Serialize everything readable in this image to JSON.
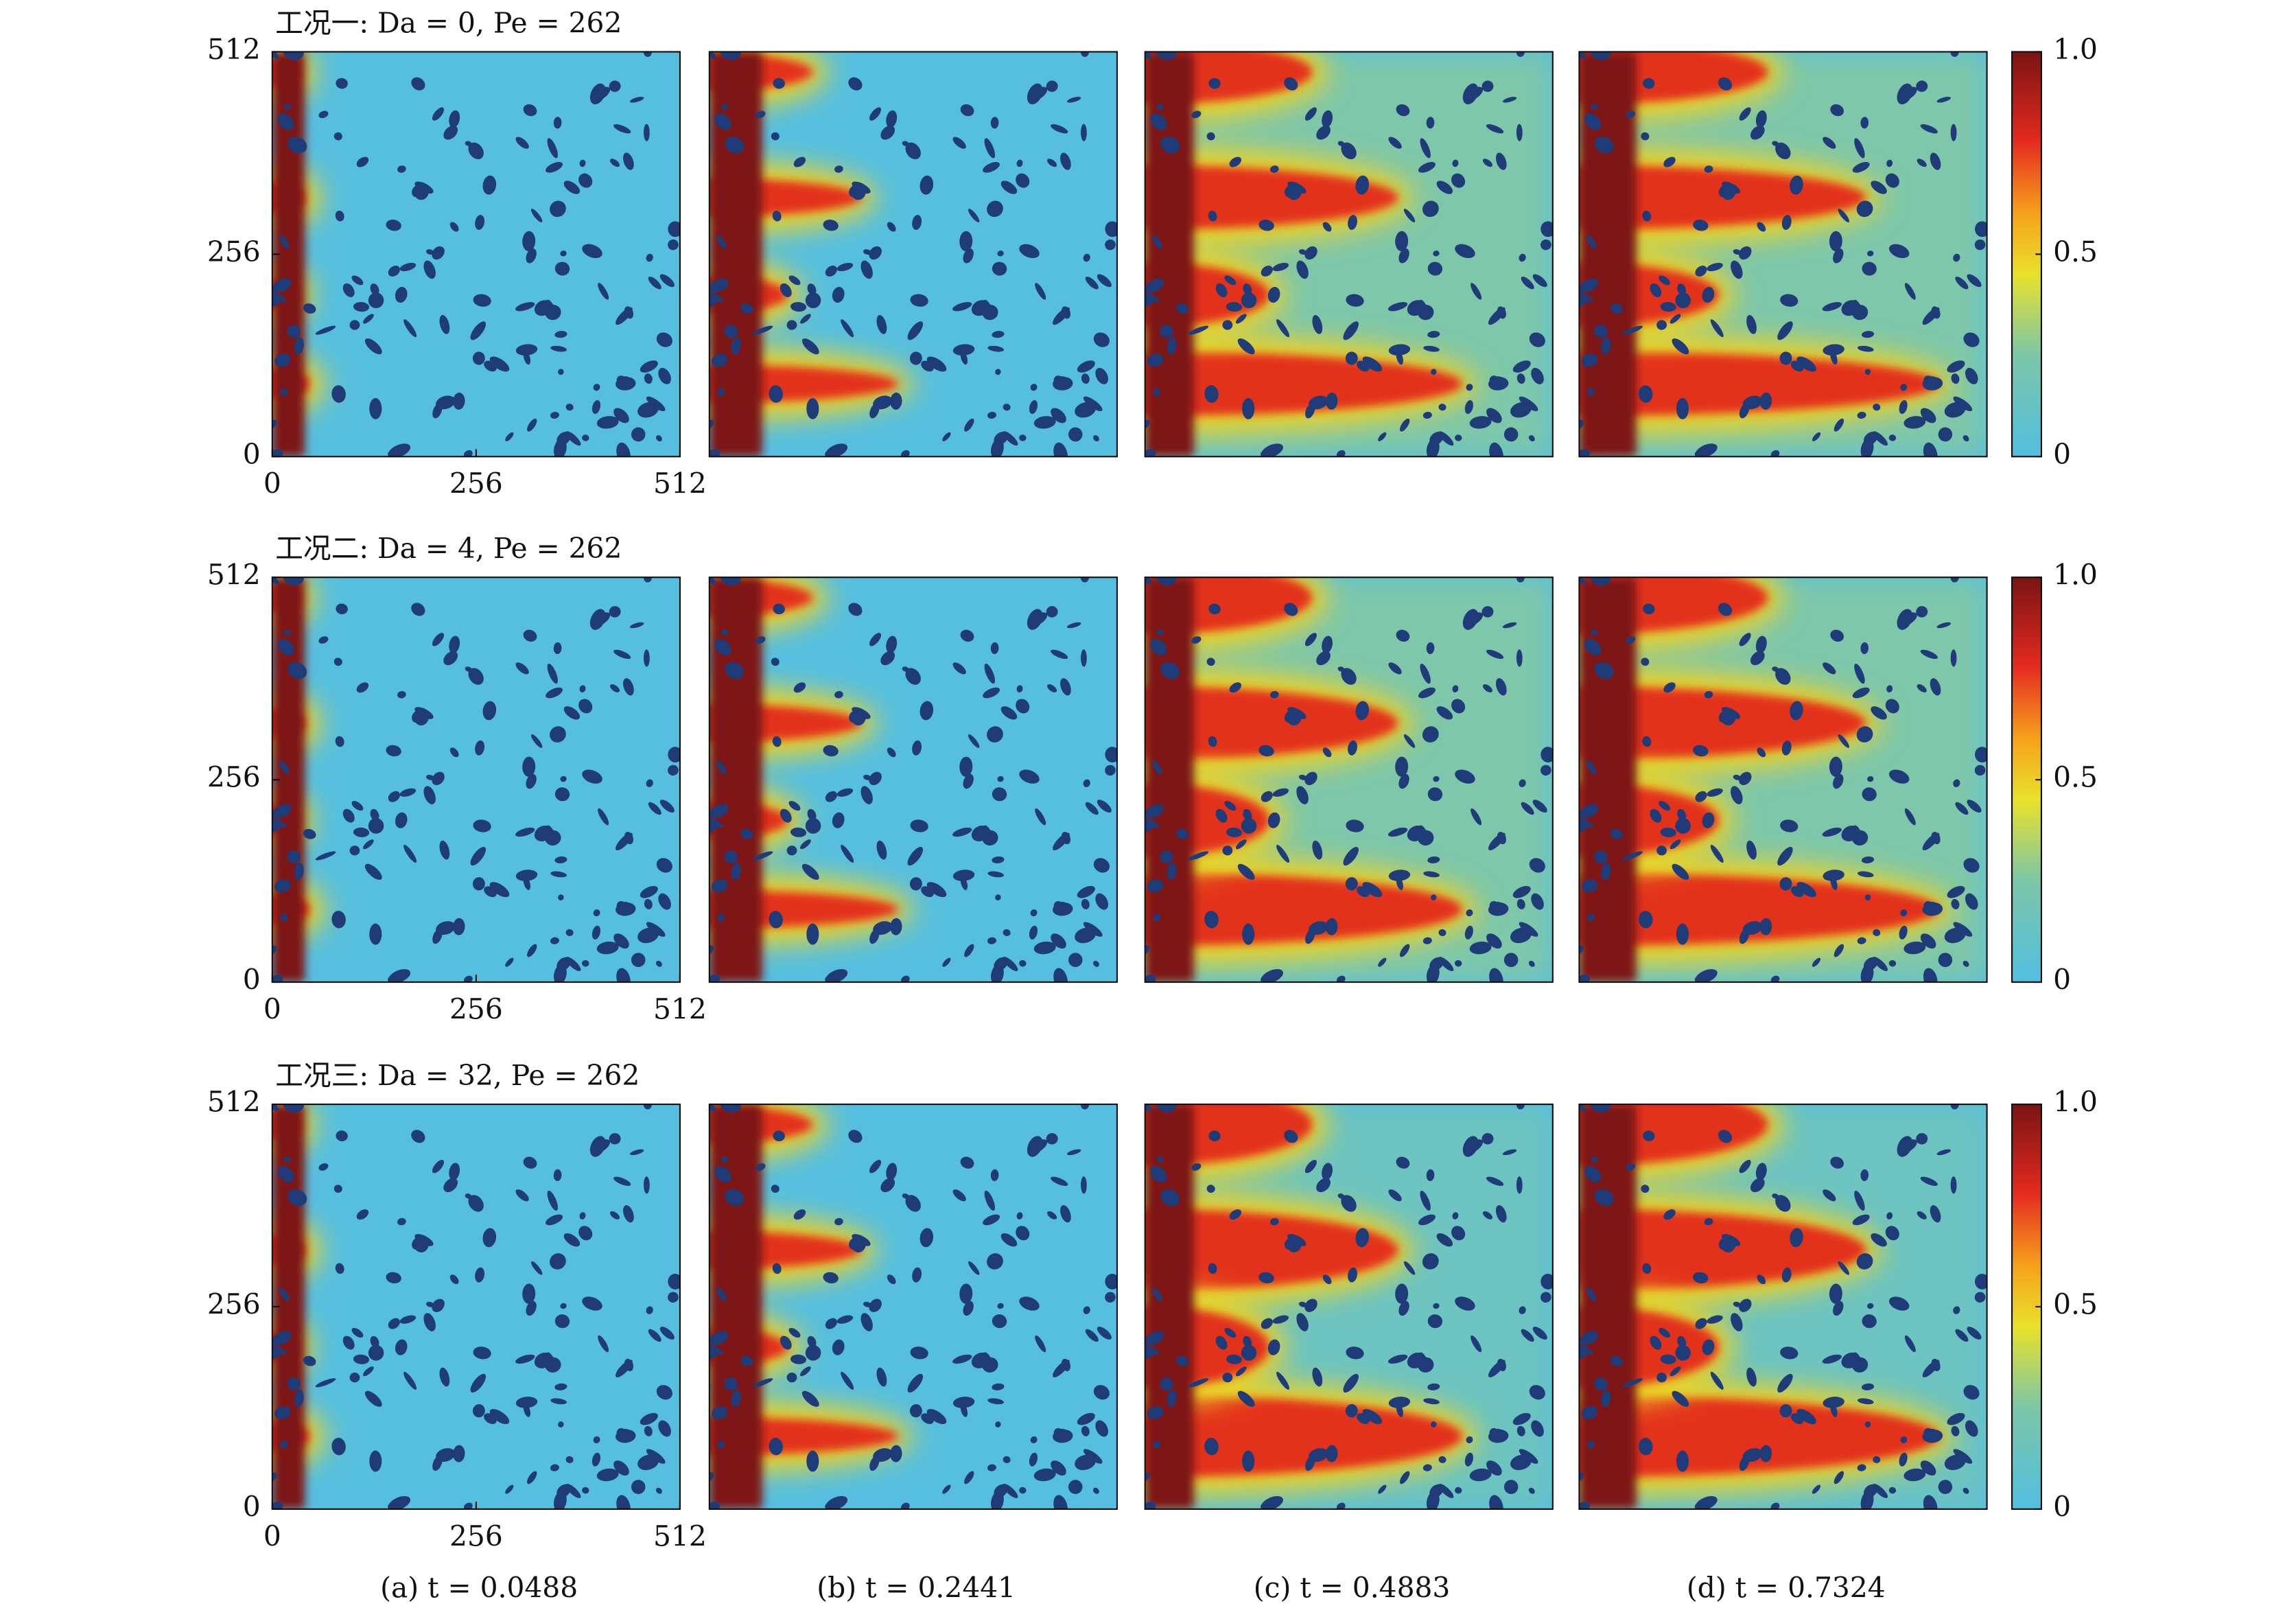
{
  "figure": {
    "rows": [
      {
        "title": "工况一: Da = 0, Pe = 262"
      },
      {
        "title": "工况二: Da = 4, Pe = 262"
      },
      {
        "title": "工况三: Da = 32, Pe = 262"
      }
    ],
    "xlim": [
      0,
      512
    ],
    "xticks": [
      0,
      256,
      512
    ],
    "ylim": [
      0,
      512
    ],
    "yticks": [
      0,
      256,
      512
    ],
    "colorbar": {
      "lim": [
        0,
        1
      ],
      "ticks": [
        0,
        0.5,
        {
          "value": 1,
          "label": "1.0"
        }
      ]
    },
    "captions": [
      "(a) t = 0.0488",
      "(b) t = 0.2441",
      "(c) t = 0.4883",
      "(d) t = 0.7324"
    ]
  }
}
